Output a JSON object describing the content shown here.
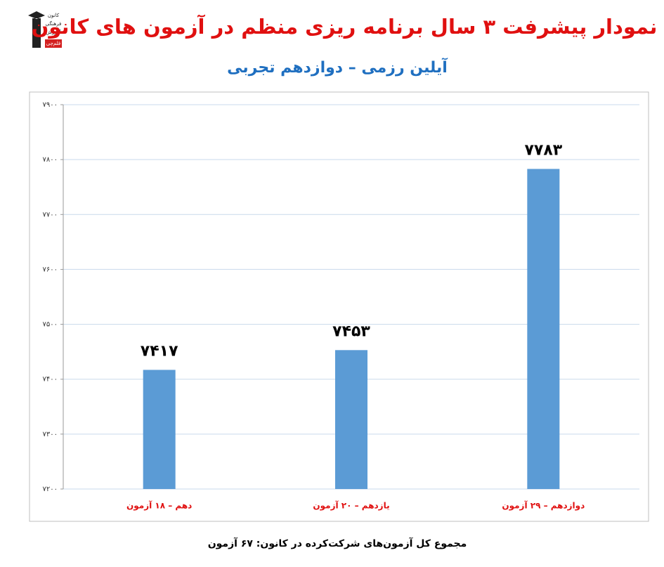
{
  "logo": {
    "lines": [
      "کانون",
      "فرهنگی",
      "آموزش",
      "قلم‌چی"
    ]
  },
  "chart_data": {
    "type": "bar",
    "title": "نمودار پیشرفت ۳ سال برنامه ریزی منظم در آزمون های کانون",
    "subtitle": "آیلین رزمی – دوازدهم تجربی",
    "categories": [
      "دهم – ۱۸ آزمون",
      "یازدهم – ۲۰ آزمون",
      "دوازدهم – ۲۹ آزمون"
    ],
    "values": [
      7417,
      7453,
      7783
    ],
    "value_labels": [
      "۷۴۱۷",
      "۷۴۵۳",
      "۷۷۸۳"
    ],
    "color": "#5b9bd5",
    "ylim": [
      7200,
      7900
    ],
    "yticks": [
      {
        "value": 7200,
        "label": "۷۲۰۰"
      },
      {
        "value": 7300,
        "label": "۷۳۰۰"
      },
      {
        "value": 7400,
        "label": "۷۴۰۰"
      },
      {
        "value": 7500,
        "label": "۷۵۰۰"
      },
      {
        "value": 7600,
        "label": "۷۶۰۰"
      },
      {
        "value": 7700,
        "label": "۷۷۰۰"
      },
      {
        "value": 7800,
        "label": "۷۸۰۰"
      },
      {
        "value": 7900,
        "label": "۷۹۰۰"
      }
    ],
    "grid": true,
    "footnote": "مجموع کل آزمون‌های شرکت‌کرده در کانون:  ۶۷ آزمون"
  }
}
